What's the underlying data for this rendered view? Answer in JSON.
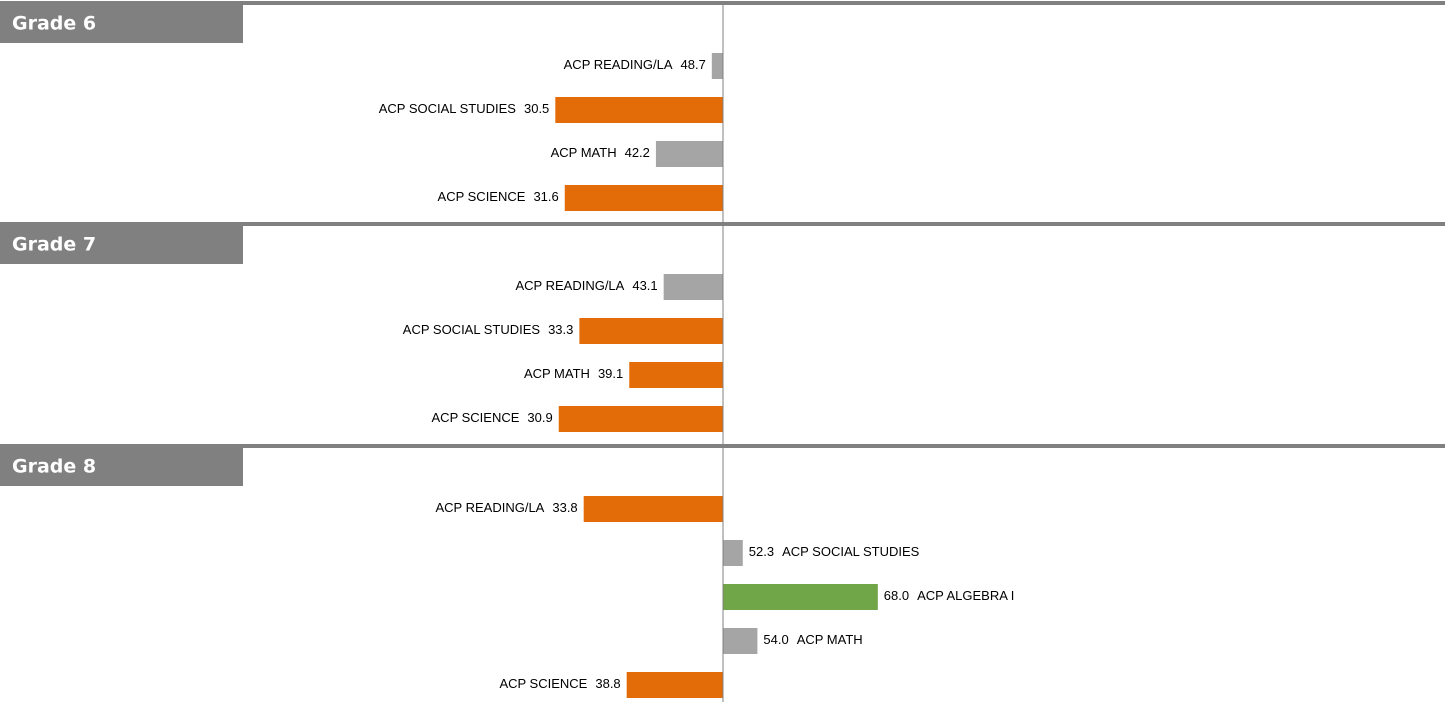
{
  "chart_data": [
    {
      "type": "bar",
      "title": "Grade 6",
      "categories": [
        "ACP READING/LA",
        "ACP SOCIAL STUDIES",
        "ACP MATH",
        "ACP SCIENCE"
      ],
      "values": [
        48.7,
        30.5,
        42.2,
        31.6
      ],
      "value_labels": [
        "48.7",
        "30.5",
        "42.2",
        "31.6"
      ],
      "colors": [
        "#a5a5a5",
        "#e36c09",
        "#a5a5a5",
        "#e36c09"
      ],
      "xlim": [
        0,
        100
      ]
    },
    {
      "type": "bar",
      "title": "Grade 7",
      "categories": [
        "ACP READING/LA",
        "ACP SOCIAL STUDIES",
        "ACP MATH",
        "ACP SCIENCE"
      ],
      "values": [
        43.1,
        33.3,
        39.1,
        30.9
      ],
      "value_labels": [
        "43.1",
        "33.3",
        "39.1",
        "30.9"
      ],
      "colors": [
        "#a5a5a5",
        "#e36c09",
        "#e36c09",
        "#e36c09"
      ],
      "xlim": [
        0,
        100
      ]
    },
    {
      "type": "bar",
      "title": "Grade 8",
      "categories": [
        "ACP READING/LA",
        "ACP SOCIAL STUDIES",
        "ACP ALGEBRA I",
        "ACP MATH",
        "ACP SCIENCE"
      ],
      "values": [
        33.8,
        52.3,
        68.0,
        54.0,
        38.8
      ],
      "value_labels": [
        "33.8",
        "52.3",
        "68.0",
        "54.0",
        "38.8"
      ],
      "colors": [
        "#e36c09",
        "#a5a5a5",
        "#70a548",
        "#a5a5a5",
        "#e36c09"
      ],
      "xlim": [
        0,
        100
      ]
    }
  ]
}
